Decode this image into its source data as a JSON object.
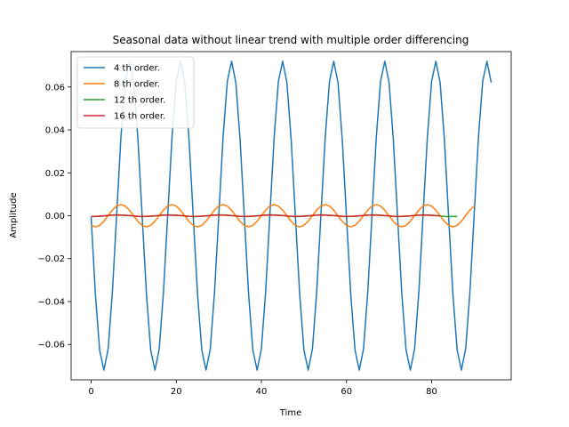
{
  "chart_data": {
    "type": "line",
    "title": "Seasonal data without linear trend with multiple order differencing",
    "xlabel": "Time",
    "ylabel": "Amplitude",
    "xlim": [
      -4.7,
      98.7
    ],
    "ylim": [
      -0.0765,
      0.0765
    ],
    "xticks": [
      0,
      20,
      40,
      60,
      80
    ],
    "yticks": [
      -0.06,
      -0.04,
      -0.02,
      0.0,
      0.02,
      0.04,
      0.06
    ],
    "ytick_labels": [
      "−0.06",
      "−0.04",
      "−0.02",
      "0.00",
      "0.02",
      "0.04",
      "0.06"
    ],
    "grid": false,
    "legend_position": "top-left",
    "series": [
      {
        "name": "4 th order.",
        "color": "#1f77b4",
        "start": 0,
        "period": 12,
        "amplitude": 0.072,
        "phase": 3.15,
        "end": 94,
        "clip": true
      },
      {
        "name": "8 th order.",
        "color": "#ff7f0e",
        "start": 0,
        "period": 12,
        "amplitude": 0.0052,
        "phase": 4.2,
        "end": 90,
        "clip": false
      },
      {
        "name": "12 th order.",
        "color": "#2ca02c",
        "start": 0,
        "period": 12,
        "amplitude": 0.0004,
        "phase": 4.5,
        "end": 86,
        "clip": false
      },
      {
        "name": "16 th order.",
        "color": "#d62728",
        "start": 0,
        "period": 12,
        "amplitude": 0.0003,
        "phase": 4.6,
        "end": 82,
        "clip": false
      }
    ]
  }
}
